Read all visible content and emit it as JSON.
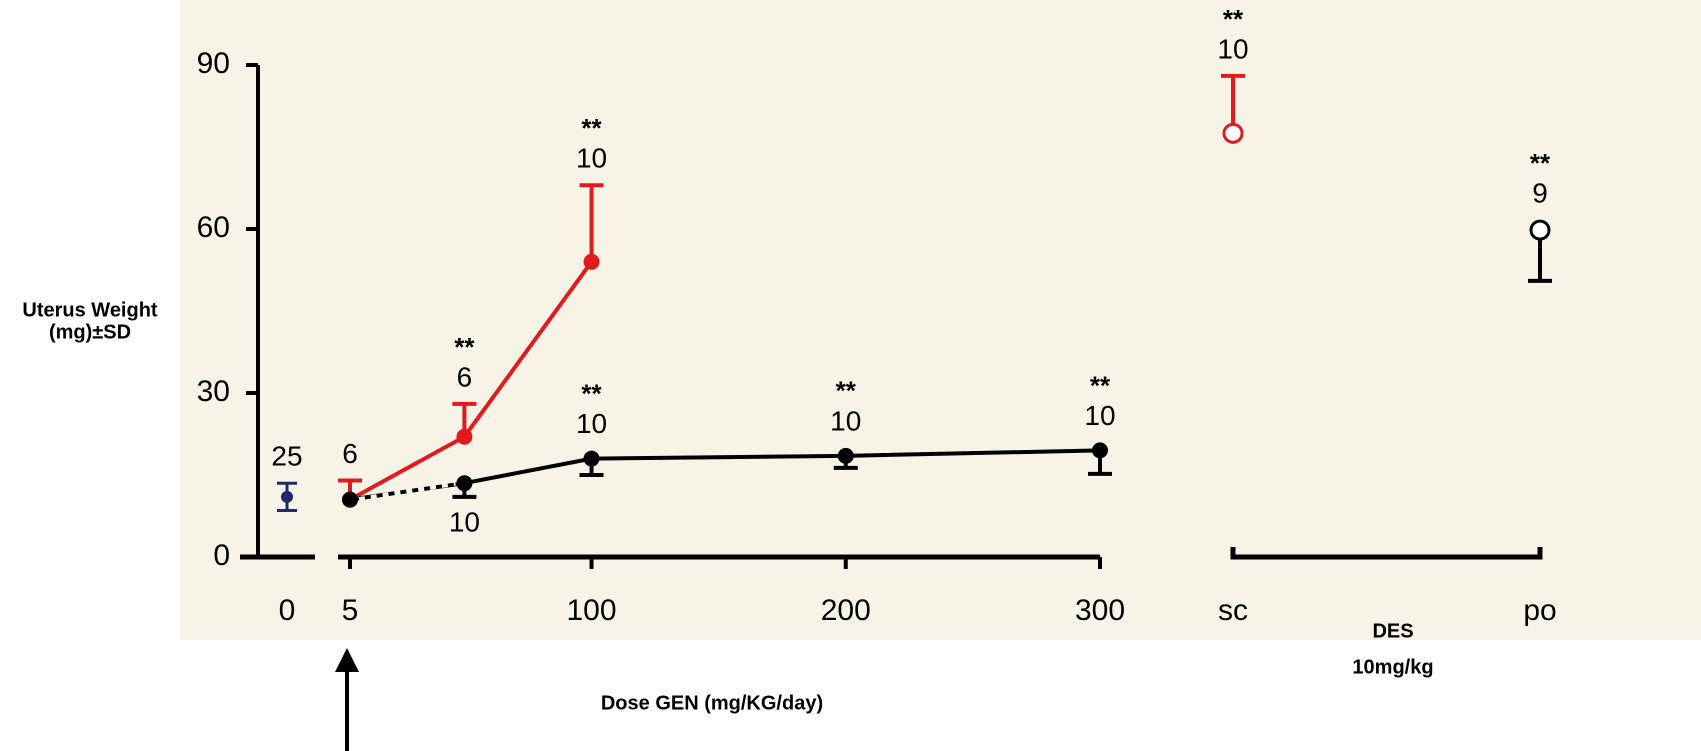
{
  "chart_data": {
    "type": "line",
    "ylabel": [
      "Uterus Weight",
      "(mg)±SD"
    ],
    "xlabel": "Dose GEN (mg/KG/day)",
    "ylim": [
      0,
      90
    ],
    "yticks": [
      0,
      30,
      60,
      90
    ],
    "xlim": [
      5,
      300
    ],
    "xticks": [
      5,
      100,
      200,
      300
    ],
    "control": {
      "category": "0",
      "value": 11,
      "error": 2.5,
      "color": "#1f2a6b",
      "n": "25"
    },
    "series": [
      {
        "color": "#e31a1c",
        "x": [
          5,
          50,
          100
        ],
        "values": [
          10.5,
          22,
          54
        ],
        "errors": [
          3.5,
          6,
          14
        ],
        "error_direction": "up",
        "n": [
          "6",
          "6",
          "10"
        ],
        "sig": [
          null,
          "**",
          "**"
        ]
      },
      {
        "color": "#000000",
        "x": [
          5,
          50,
          100,
          200,
          300
        ],
        "values": [
          10.5,
          13.5,
          18,
          18.5,
          19.5
        ],
        "errors": [
          0,
          2.5,
          3,
          2.2,
          4.3
        ],
        "error_direction": "down",
        "n": [
          null,
          "10",
          "10",
          "10",
          "10"
        ],
        "sig": [
          null,
          null,
          "**",
          "**",
          "**"
        ]
      }
    ],
    "des": {
      "label": [
        "DES",
        "10mg/kg"
      ],
      "categories": [
        "sc",
        "po"
      ],
      "values": [
        77.5,
        59.8
      ],
      "errors": [
        10.5,
        9.3
      ],
      "error_direction": [
        "up",
        "down"
      ],
      "colors": [
        "#e31a1c",
        "#000000"
      ],
      "n": [
        "10",
        "9"
      ],
      "sig": [
        "**",
        "**"
      ]
    }
  }
}
